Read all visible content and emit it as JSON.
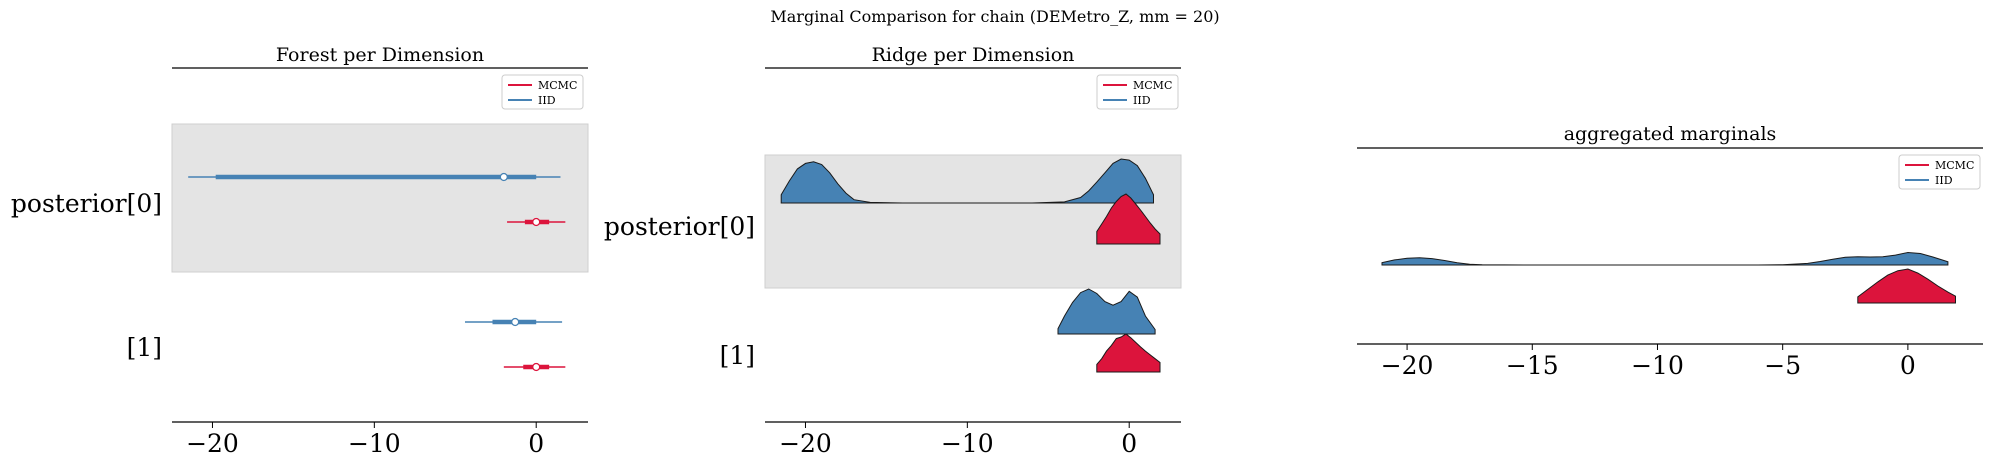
{
  "suptitle": "Marginal Comparison for chain (DEMetro_Z, mm = 20)",
  "colors": {
    "mcmc": "#dc143c",
    "iid": "#4682b4",
    "shade": "#e4e4e4"
  },
  "chart_data": [
    {
      "type": "forest",
      "title": "Forest per Dimension",
      "legend": {
        "placement": "top-right",
        "entries": [
          "MCMC",
          "IID"
        ]
      },
      "xlim": [
        -22.5,
        3.2
      ],
      "xticks": [
        -20,
        -10,
        0
      ],
      "xtick_labels": [
        "−20",
        "−10",
        "0"
      ],
      "rows": [
        {
          "label": "posterior[0]",
          "series": [
            {
              "name": "IID",
              "hdi_low": -21.5,
              "iqr_low": -19.8,
              "iqr_high": 0.0,
              "hdi_high": 1.5,
              "point": -2.0
            },
            {
              "name": "MCMC",
              "hdi_low": -1.8,
              "iqr_low": -0.7,
              "iqr_high": 0.8,
              "hdi_high": 1.8,
              "point": 0.0
            }
          ]
        },
        {
          "label": "[1]",
          "series": [
            {
              "name": "IID",
              "hdi_low": -4.4,
              "iqr_low": -2.7,
              "iqr_high": 0.0,
              "hdi_high": 1.6,
              "point": -1.3
            },
            {
              "name": "MCMC",
              "hdi_low": -2.0,
              "iqr_low": -0.8,
              "iqr_high": 0.8,
              "hdi_high": 1.8,
              "point": 0.0
            }
          ]
        }
      ]
    },
    {
      "type": "ridge",
      "title": "Ridge per Dimension",
      "legend": {
        "placement": "top-right",
        "entries": [
          "MCMC",
          "IID"
        ]
      },
      "xlim": [
        -22.5,
        3.2
      ],
      "xticks": [
        -20,
        -10,
        0
      ],
      "xtick_labels": [
        "−20",
        "−10",
        "0"
      ],
      "rows": [
        {
          "label": "posterior[0]",
          "series": [
            {
              "name": "IID",
              "x": [
                -21.5,
                -21.0,
                -20.5,
                -20.0,
                -19.5,
                -19.0,
                -18.5,
                -18.0,
                -17.5,
                -17.0,
                -16.0,
                -14.0,
                -10.0,
                -6.0,
                -4.0,
                -3.0,
                -2.5,
                -2.0,
                -1.5,
                -1.0,
                -0.5,
                0.0,
                0.5,
                1.0,
                1.5
              ],
              "y": [
                0.15,
                0.4,
                0.62,
                0.72,
                0.75,
                0.7,
                0.55,
                0.35,
                0.18,
                0.06,
                0.01,
                0.0,
                0.0,
                0.0,
                0.02,
                0.1,
                0.22,
                0.38,
                0.55,
                0.72,
                0.8,
                0.78,
                0.68,
                0.45,
                0.15
              ]
            },
            {
              "name": "MCMC",
              "x": [
                -2.0,
                -1.7,
                -1.4,
                -1.1,
                -0.8,
                -0.5,
                -0.2,
                0.1,
                0.4,
                0.7,
                1.0,
                1.3,
                1.6,
                1.9
              ],
              "y": [
                0.25,
                0.4,
                0.55,
                0.72,
                0.85,
                0.95,
                1.0,
                0.92,
                0.8,
                0.68,
                0.55,
                0.42,
                0.3,
                0.2
              ]
            }
          ]
        },
        {
          "label": "[1]",
          "series": [
            {
              "name": "IID",
              "x": [
                -4.4,
                -4.0,
                -3.5,
                -3.0,
                -2.5,
                -2.0,
                -1.5,
                -1.0,
                -0.5,
                0.0,
                0.5,
                1.0,
                1.6
              ],
              "y": [
                0.12,
                0.4,
                0.7,
                0.92,
                1.0,
                0.9,
                0.72,
                0.64,
                0.72,
                0.95,
                0.82,
                0.4,
                0.1
              ]
            },
            {
              "name": "MCMC",
              "x": [
                -2.0,
                -1.7,
                -1.4,
                -1.1,
                -0.8,
                -0.5,
                -0.2,
                0.1,
                0.4,
                0.7,
                1.0,
                1.3,
                1.6,
                1.9
              ],
              "y": [
                0.2,
                0.35,
                0.55,
                0.7,
                0.88,
                0.92,
                1.0,
                0.9,
                0.78,
                0.66,
                0.55,
                0.45,
                0.35,
                0.25
              ]
            }
          ]
        }
      ]
    },
    {
      "type": "ridge",
      "title": "aggregated marginals",
      "legend": {
        "placement": "top-right",
        "entries": [
          "MCMC",
          "IID"
        ]
      },
      "xlim": [
        -22.0,
        3.0
      ],
      "xticks": [
        -20,
        -15,
        -10,
        -5,
        0
      ],
      "xtick_labels": [
        "−20",
        "−15",
        "−10",
        "−5",
        "0"
      ],
      "series": [
        {
          "name": "IID",
          "x": [
            -21.0,
            -20.5,
            -20.0,
            -19.5,
            -19.0,
            -18.5,
            -18.0,
            -17.5,
            -17.0,
            -15.0,
            -10.0,
            -6.0,
            -5.0,
            -4.0,
            -3.5,
            -3.0,
            -2.5,
            -2.0,
            -1.5,
            -1.0,
            -0.5,
            0.0,
            0.5,
            1.0,
            1.6
          ],
          "y": [
            0.15,
            0.32,
            0.42,
            0.45,
            0.4,
            0.28,
            0.14,
            0.05,
            0.01,
            0.0,
            0.0,
            0.0,
            0.02,
            0.1,
            0.22,
            0.36,
            0.48,
            0.52,
            0.5,
            0.52,
            0.62,
            0.78,
            0.72,
            0.5,
            0.2
          ]
        },
        {
          "name": "MCMC",
          "x": [
            -2.0,
            -1.6,
            -1.2,
            -0.8,
            -0.4,
            0.0,
            0.4,
            0.8,
            1.2,
            1.6,
            1.9
          ],
          "y": [
            0.18,
            0.4,
            0.62,
            0.82,
            0.95,
            1.0,
            0.88,
            0.7,
            0.5,
            0.32,
            0.2
          ]
        }
      ]
    }
  ]
}
